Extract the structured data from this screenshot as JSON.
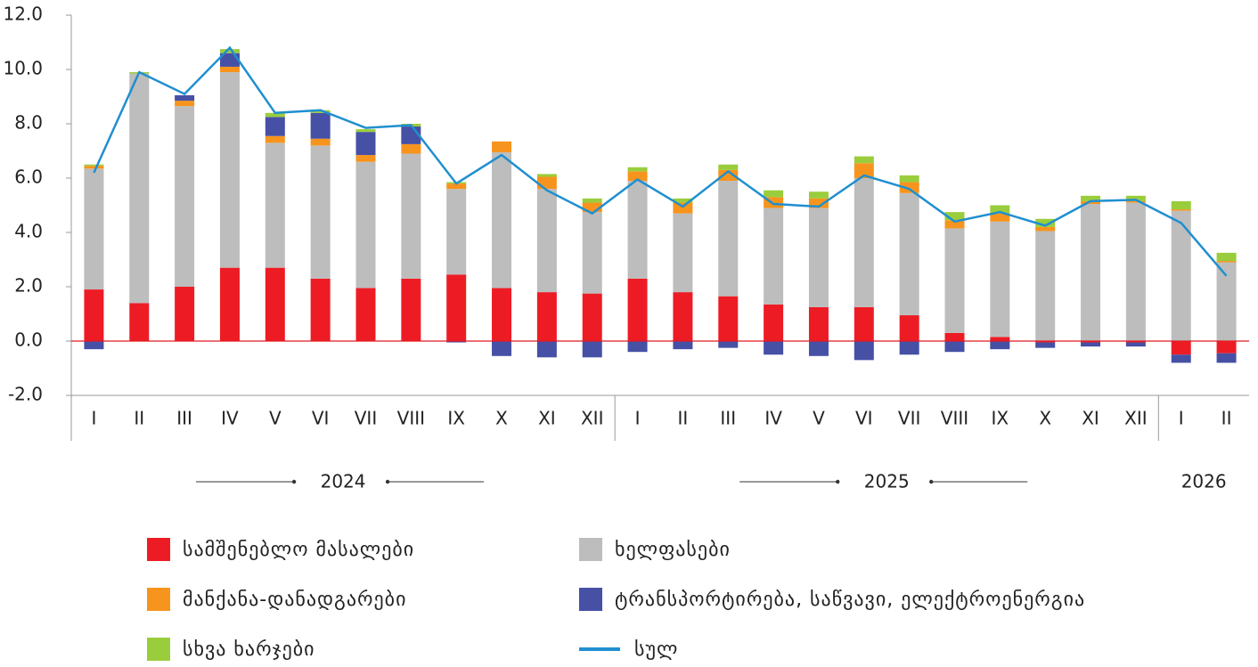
{
  "chart_data": {
    "type": "bar",
    "stacked": true,
    "groups": [
      {
        "label": "2024",
        "categories": [
          "I",
          "II",
          "III",
          "IV",
          "V",
          "VI",
          "VII",
          "VIII",
          "IX",
          "X",
          "XI",
          "XII"
        ]
      },
      {
        "label": "2025",
        "categories": [
          "I",
          "II",
          "III",
          "IV",
          "V",
          "VI",
          "VII",
          "VIII",
          "IX",
          "X",
          "XI",
          "XII"
        ]
      },
      {
        "label": "2026",
        "categories": [
          "I",
          "II"
        ]
      }
    ],
    "ylim": [
      -2,
      12
    ],
    "yticks": [
      {
        "value": -2,
        "label": "-2.0"
      },
      {
        "value": 0,
        "label": "0.0"
      },
      {
        "value": 2,
        "label": "2.0"
      },
      {
        "value": 4,
        "label": "4.0"
      },
      {
        "value": 6,
        "label": "6.0"
      },
      {
        "value": 8,
        "label": "8.0"
      },
      {
        "value": 10,
        "label": "10.0"
      },
      {
        "value": 12,
        "label": "12.0"
      }
    ],
    "series": [
      {
        "name": "სამშენებლო მასალები",
        "type": "bar",
        "color": "#ed1c24",
        "values": [
          1.9,
          1.4,
          2.0,
          2.7,
          2.7,
          2.3,
          1.95,
          2.3,
          2.45,
          1.95,
          1.8,
          1.75,
          2.3,
          1.8,
          1.65,
          1.35,
          1.25,
          1.25,
          0.95,
          0.3,
          0.15,
          -0.05,
          -0.05,
          -0.05,
          -0.5,
          -0.45
        ]
      },
      {
        "name": "ხელფასები",
        "type": "bar",
        "color": "#bdbdbd",
        "values": [
          4.45,
          8.45,
          6.65,
          7.2,
          4.6,
          4.9,
          4.65,
          4.6,
          3.15,
          5.0,
          3.8,
          3.0,
          3.6,
          2.9,
          4.25,
          3.55,
          3.65,
          4.75,
          4.5,
          3.85,
          4.25,
          4.05,
          5.05,
          5.1,
          4.8,
          2.9
        ]
      },
      {
        "name": "მანქანა-დანადგარები",
        "type": "bar",
        "color": "#f7941d",
        "values": [
          0.1,
          0.0,
          0.2,
          0.2,
          0.25,
          0.25,
          0.25,
          0.35,
          0.2,
          0.4,
          0.45,
          0.35,
          0.35,
          0.4,
          0.4,
          0.4,
          0.35,
          0.55,
          0.4,
          0.3,
          0.3,
          0.15,
          0.1,
          0.05,
          0.05,
          0.05
        ]
      },
      {
        "name": "ტრანსპორტირება, საწვავი, ელექტროენერგია",
        "type": "bar",
        "color": "#4650a5",
        "values": [
          -0.3,
          0.0,
          0.2,
          0.5,
          0.7,
          0.95,
          0.85,
          0.65,
          -0.05,
          -0.55,
          -0.6,
          -0.6,
          -0.4,
          -0.3,
          -0.25,
          -0.5,
          -0.55,
          -0.7,
          -0.5,
          -0.4,
          -0.3,
          -0.2,
          -0.15,
          -0.15,
          -0.3,
          -0.35
        ]
      },
      {
        "name": "სხვა ხარჯები",
        "type": "bar",
        "color": "#9acd3c",
        "values": [
          0.05,
          0.05,
          0.0,
          0.15,
          0.15,
          0.1,
          0.1,
          0.1,
          0.05,
          0.0,
          0.1,
          0.15,
          0.15,
          0.15,
          0.2,
          0.25,
          0.25,
          0.25,
          0.25,
          0.3,
          0.3,
          0.3,
          0.2,
          0.2,
          0.3,
          0.3
        ]
      },
      {
        "name": "სულ",
        "type": "line",
        "color": "#1f8fd0",
        "values": [
          6.2,
          9.9,
          9.1,
          10.8,
          8.4,
          8.5,
          7.85,
          7.95,
          5.8,
          6.85,
          5.55,
          4.7,
          5.95,
          4.95,
          6.25,
          5.05,
          4.95,
          6.1,
          5.6,
          4.4,
          4.75,
          4.25,
          5.15,
          5.2,
          4.35,
          2.4
        ]
      }
    ]
  }
}
